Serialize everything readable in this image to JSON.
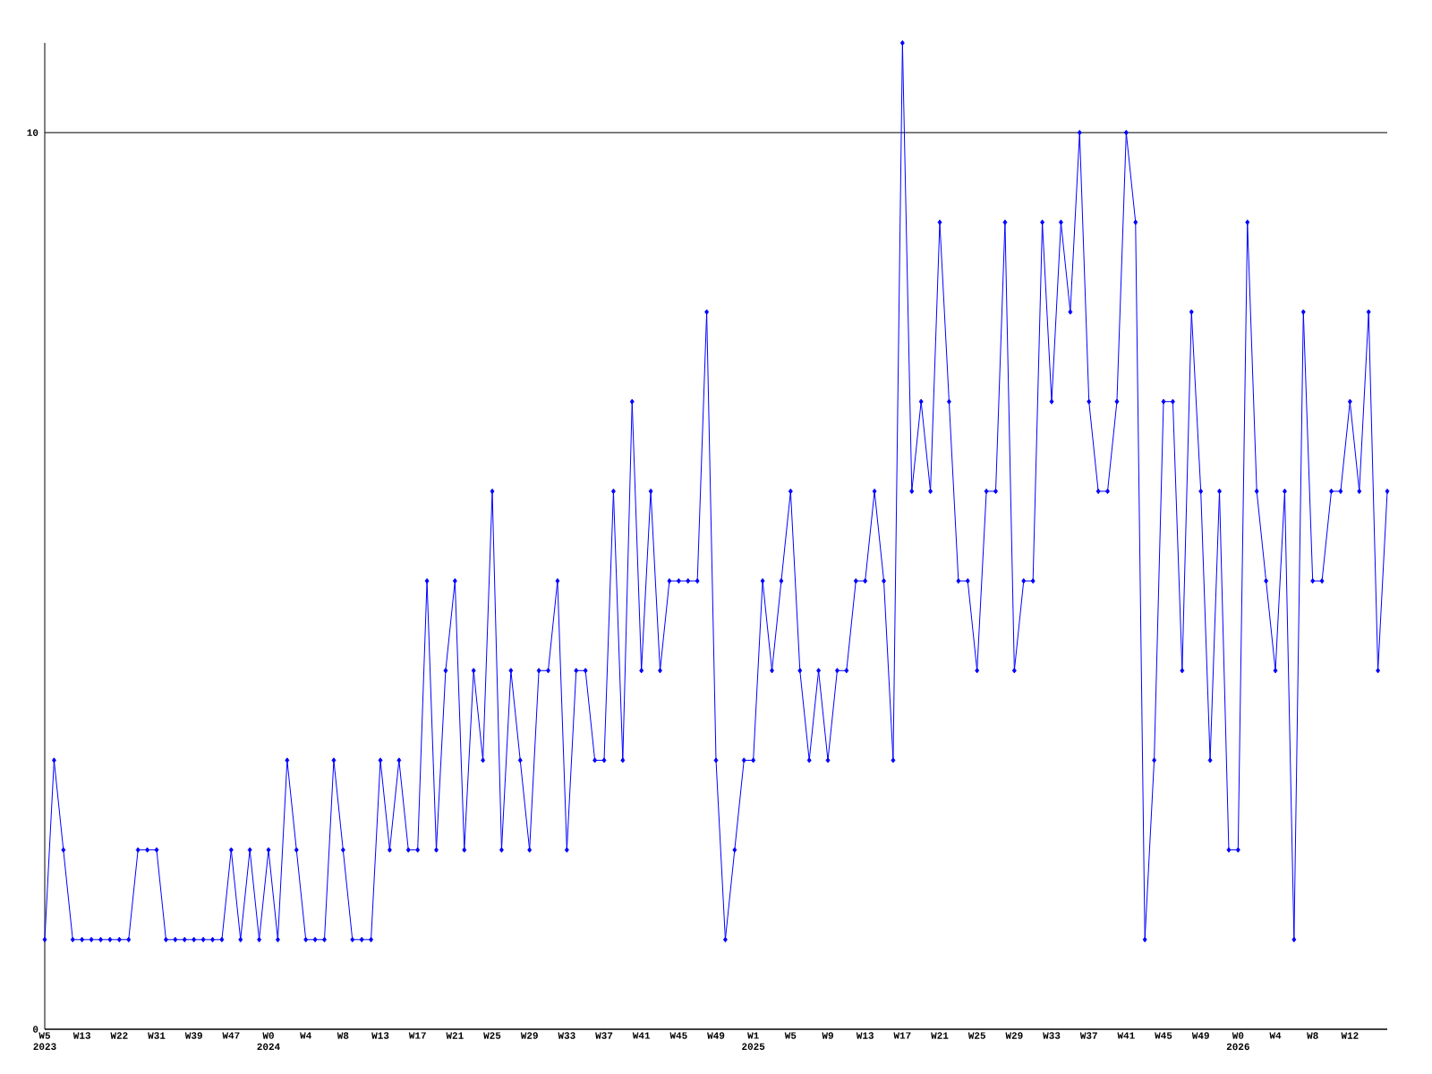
{
  "chart_data": {
    "type": "line",
    "categories": [
      "W5 2023",
      null,
      null,
      null,
      "W13",
      null,
      null,
      null,
      "W22",
      null,
      null,
      null,
      "W31",
      null,
      null,
      null,
      "W39",
      null,
      null,
      null,
      "W47",
      null,
      null,
      null,
      "W0 2024",
      null,
      null,
      null,
      "W4",
      null,
      null,
      null,
      "W8",
      null,
      null,
      null,
      "W13",
      null,
      null,
      null,
      "W17",
      null,
      null,
      null,
      "W21",
      null,
      null,
      null,
      "W25",
      null,
      null,
      null,
      "W29",
      null,
      null,
      null,
      "W33",
      null,
      null,
      null,
      "W37",
      null,
      null,
      null,
      "W41",
      null,
      null,
      null,
      "W45",
      null,
      null,
      null,
      "W49",
      null,
      null,
      null,
      "W1 2025",
      null,
      null,
      null,
      "W5",
      null,
      null,
      null,
      "W9",
      null,
      null,
      null,
      "W13",
      null,
      null,
      null,
      "W17",
      null,
      null,
      null,
      "W21",
      null,
      null,
      null,
      "W25",
      null,
      null,
      null,
      "W29",
      null,
      null,
      null,
      "W33",
      null,
      null,
      null,
      "W37",
      null,
      null,
      null,
      "W41",
      null,
      null,
      null,
      "W45",
      null,
      null,
      null,
      "W49",
      null,
      null,
      null,
      "W0 2026",
      null,
      null,
      null,
      "W4",
      null,
      null,
      null,
      "W8",
      null,
      null,
      null,
      "W12",
      null,
      null,
      null,
      null
    ],
    "values": [
      1,
      3,
      2,
      1,
      1,
      1,
      1,
      1,
      1,
      1,
      2,
      2,
      2,
      1,
      1,
      1,
      1,
      1,
      1,
      1,
      2,
      1,
      2,
      1,
      2,
      1,
      3,
      2,
      1,
      1,
      1,
      3,
      2,
      1,
      1,
      1,
      3,
      2,
      3,
      2,
      2,
      5,
      2,
      4,
      5,
      2,
      4,
      3,
      6,
      2,
      4,
      3,
      2,
      4,
      4,
      5,
      2,
      4,
      4,
      3,
      3,
      6,
      3,
      7,
      4,
      6,
      4,
      5,
      5,
      5,
      5,
      8,
      3,
      1,
      2,
      3,
      3,
      5,
      4,
      5,
      6,
      4,
      3,
      4,
      3,
      4,
      4,
      5,
      5,
      6,
      5,
      3,
      11,
      6,
      7,
      6,
      9,
      7,
      5,
      5,
      4,
      6,
      6,
      9,
      4,
      5,
      5,
      9,
      7,
      9,
      8,
      10,
      7,
      6,
      6,
      7,
      10,
      9,
      1,
      3,
      7,
      7,
      4,
      8,
      6,
      3,
      6,
      2,
      2,
      9,
      6,
      5,
      4,
      6,
      1,
      8,
      5,
      5,
      6,
      6,
      7,
      6,
      8,
      4,
      6
    ],
    "color": "#0000ff",
    "ylim": [
      0,
      11
    ],
    "yticks": [
      0,
      10
    ],
    "grid": "y",
    "marker": "diamond"
  }
}
